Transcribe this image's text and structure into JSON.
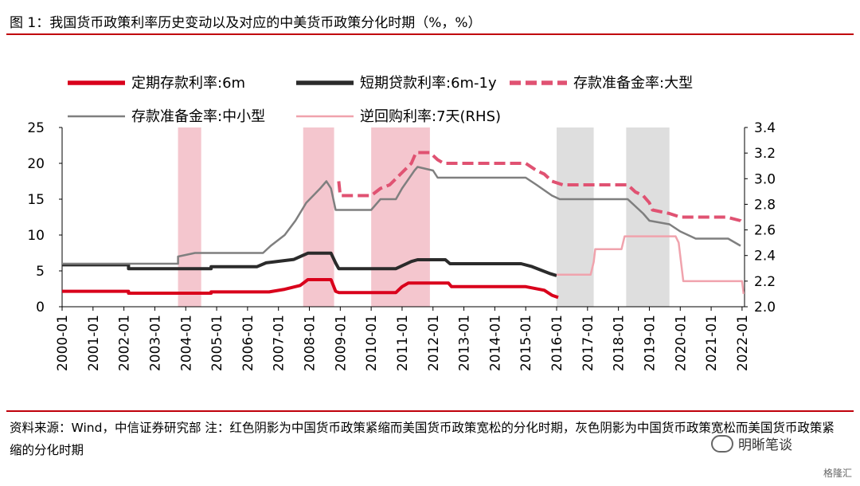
{
  "header": {
    "title": "图 1：我国货币政策利率历史变动以及对应的中美货币政策分化时期（%，%）"
  },
  "footer": {
    "note": "资料来源：Wind，中信证券研究部    注：红色阴影为中国货币政策紧缩而美国货币政策宽松的分化时期，灰色阴影为中国货币政策宽松而美国货币政策紧缩的分化时期",
    "watermark": "明晰笔谈",
    "watermark2": "格隆汇"
  },
  "chart_data": {
    "type": "line",
    "title": "",
    "xlabel": "",
    "ylabel": "",
    "x_ticks": [
      "2000-01",
      "2001-01",
      "2002-01",
      "2003-01",
      "2004-01",
      "2005-01",
      "2006-01",
      "2007-01",
      "2008-01",
      "2009-01",
      "2010-01",
      "2011-01",
      "2012-01",
      "2013-01",
      "2014-01",
      "2015-01",
      "2016-01",
      "2017-01",
      "2018-01",
      "2019-01",
      "2020-01",
      "2021-01",
      "2022-01"
    ],
    "xlim": [
      2000.0,
      2022.08
    ],
    "y_left": {
      "lim": [
        0,
        25
      ],
      "ticks": [
        "0",
        "5",
        "10",
        "15",
        "20",
        "25"
      ]
    },
    "y_right": {
      "lim": [
        2.0,
        3.4
      ],
      "ticks": [
        "2.0",
        "2.2",
        "2.4",
        "2.6",
        "2.8",
        "3.0",
        "3.2",
        "3.4"
      ]
    },
    "legend_position": "top",
    "shaded_periods": [
      {
        "color": "#f4c6ce",
        "meaning": "red",
        "range": [
          2003.75,
          2004.5
        ]
      },
      {
        "color": "#f4c6ce",
        "meaning": "red",
        "range": [
          2007.8,
          2008.8
        ]
      },
      {
        "color": "#f4c6ce",
        "meaning": "red",
        "range": [
          2010.0,
          2011.9
        ]
      },
      {
        "color": "#dedede",
        "meaning": "gray",
        "range": [
          2016.0,
          2017.2
        ]
      },
      {
        "color": "#dedede",
        "meaning": "gray",
        "range": [
          2018.25,
          2019.65
        ]
      }
    ],
    "series": [
      {
        "name": "定期存款利率:6m",
        "color": "#d9001b",
        "width": 4,
        "dash": "",
        "axis": "left",
        "points": [
          [
            2000.0,
            2.16
          ],
          [
            2002.15,
            2.16
          ],
          [
            2002.15,
            1.89
          ],
          [
            2004.82,
            1.89
          ],
          [
            2004.82,
            2.07
          ],
          [
            2006.7,
            2.07
          ],
          [
            2007.2,
            2.43
          ],
          [
            2007.7,
            2.97
          ],
          [
            2007.95,
            3.78
          ],
          [
            2008.7,
            3.78
          ],
          [
            2008.85,
            2.16
          ],
          [
            2008.95,
            1.98
          ],
          [
            2010.8,
            1.98
          ],
          [
            2011.0,
            2.8
          ],
          [
            2011.2,
            3.3
          ],
          [
            2012.5,
            3.3
          ],
          [
            2012.6,
            2.8
          ],
          [
            2015.0,
            2.8
          ],
          [
            2015.6,
            2.3
          ],
          [
            2015.85,
            1.6
          ],
          [
            2016.05,
            1.3
          ]
        ]
      },
      {
        "name": "短期贷款利率:6m-1y",
        "color": "#2b2b2b",
        "width": 4,
        "dash": "",
        "axis": "left",
        "points": [
          [
            2000.0,
            5.85
          ],
          [
            2002.15,
            5.85
          ],
          [
            2002.15,
            5.31
          ],
          [
            2004.82,
            5.31
          ],
          [
            2004.82,
            5.58
          ],
          [
            2006.3,
            5.58
          ],
          [
            2006.6,
            6.12
          ],
          [
            2007.5,
            6.6
          ],
          [
            2007.95,
            7.47
          ],
          [
            2008.7,
            7.47
          ],
          [
            2008.85,
            6.1
          ],
          [
            2008.95,
            5.31
          ],
          [
            2010.8,
            5.31
          ],
          [
            2011.3,
            6.31
          ],
          [
            2011.5,
            6.56
          ],
          [
            2012.4,
            6.56
          ],
          [
            2012.55,
            6.0
          ],
          [
            2014.85,
            6.0
          ],
          [
            2015.2,
            5.6
          ],
          [
            2015.5,
            5.1
          ],
          [
            2015.8,
            4.6
          ],
          [
            2016.0,
            4.35
          ]
        ]
      },
      {
        "name": "存款准备金率:大型",
        "color": "#e05272",
        "width": 4,
        "dash": "14 6",
        "axis": "left",
        "points": [
          [
            2008.95,
            17.5
          ],
          [
            2009.0,
            15.5
          ],
          [
            2010.0,
            15.5
          ],
          [
            2010.3,
            16.5
          ],
          [
            2010.6,
            17.0
          ],
          [
            2010.95,
            18.5
          ],
          [
            2011.3,
            20.0
          ],
          [
            2011.45,
            21.5
          ],
          [
            2011.9,
            21.5
          ],
          [
            2012.15,
            20.5
          ],
          [
            2012.35,
            20.0
          ],
          [
            2015.0,
            20.0
          ],
          [
            2015.35,
            19.0
          ],
          [
            2015.6,
            18.5
          ],
          [
            2015.85,
            17.5
          ],
          [
            2016.2,
            17.0
          ],
          [
            2018.3,
            17.0
          ],
          [
            2018.55,
            16.0
          ],
          [
            2018.8,
            15.5
          ],
          [
            2019.0,
            14.5
          ],
          [
            2019.1,
            13.5
          ],
          [
            2019.65,
            13.0
          ],
          [
            2020.0,
            12.5
          ],
          [
            2021.5,
            12.5
          ],
          [
            2021.95,
            12.0
          ],
          [
            2022.05,
            11.5
          ]
        ]
      },
      {
        "name": "存款准备金率:中小型",
        "color": "#7f7f7f",
        "width": 2.5,
        "dash": "",
        "axis": "left",
        "points": [
          [
            2000.0,
            6.0
          ],
          [
            2003.75,
            6.0
          ],
          [
            2003.75,
            7.0
          ],
          [
            2004.3,
            7.5
          ],
          [
            2006.5,
            7.5
          ],
          [
            2006.75,
            8.5
          ],
          [
            2007.2,
            10.0
          ],
          [
            2007.55,
            12.0
          ],
          [
            2007.9,
            14.5
          ],
          [
            2008.35,
            16.5
          ],
          [
            2008.55,
            17.5
          ],
          [
            2008.7,
            16.5
          ],
          [
            2008.85,
            13.5
          ],
          [
            2010.0,
            13.5
          ],
          [
            2010.3,
            15.0
          ],
          [
            2010.8,
            15.0
          ],
          [
            2011.0,
            16.5
          ],
          [
            2011.4,
            19.0
          ],
          [
            2011.5,
            19.5
          ],
          [
            2012.0,
            19.0
          ],
          [
            2012.15,
            18.0
          ],
          [
            2015.0,
            18.0
          ],
          [
            2015.35,
            17.0
          ],
          [
            2015.85,
            15.5
          ],
          [
            2016.1,
            15.0
          ],
          [
            2018.3,
            15.0
          ],
          [
            2018.55,
            14.0
          ],
          [
            2018.8,
            13.0
          ],
          [
            2019.0,
            12.0
          ],
          [
            2019.65,
            11.5
          ],
          [
            2020.0,
            10.5
          ],
          [
            2020.5,
            9.5
          ],
          [
            2021.55,
            9.5
          ],
          [
            2021.95,
            8.5
          ]
        ]
      },
      {
        "name": "逆回购利率:7天(RHS)",
        "color": "#f0a3ad",
        "width": 2.5,
        "dash": "",
        "axis": "right",
        "points": [
          [
            2016.0,
            2.25
          ],
          [
            2017.1,
            2.25
          ],
          [
            2017.2,
            2.35
          ],
          [
            2017.25,
            2.45
          ],
          [
            2018.1,
            2.45
          ],
          [
            2018.2,
            2.55
          ],
          [
            2019.85,
            2.55
          ],
          [
            2019.95,
            2.5
          ],
          [
            2020.1,
            2.2
          ],
          [
            2022.0,
            2.2
          ],
          [
            2022.05,
            2.1
          ]
        ]
      }
    ]
  }
}
